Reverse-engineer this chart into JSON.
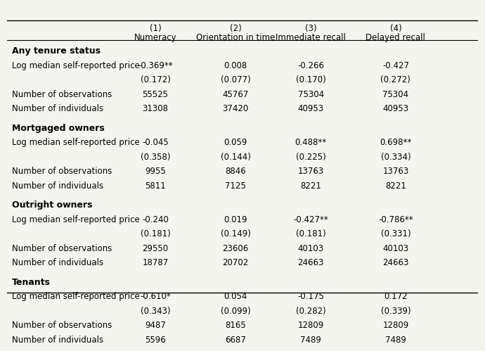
{
  "col_headers_line1": [
    "",
    "(1)",
    "(2)",
    "(3)",
    "(4)"
  ],
  "col_headers_line2": [
    "",
    "Numeracy",
    "Orientation in time",
    "Immediate recall",
    "Delayed recall"
  ],
  "sections": [
    {
      "title": "Any tenure status",
      "rows": [
        {
          "label": "Log median self-reported price",
          "values": [
            "-0.369**",
            "0.008",
            "-0.266",
            "-0.427"
          ],
          "is_coef": true
        },
        {
          "label": "",
          "values": [
            "(0.172)",
            "(0.077)",
            "(0.170)",
            "(0.272)"
          ],
          "is_coef": false
        },
        {
          "label": "Number of observations",
          "values": [
            "55525",
            "45767",
            "75304",
            "75304"
          ],
          "is_coef": false
        },
        {
          "label": "Number of individuals",
          "values": [
            "31308",
            "37420",
            "40953",
            "40953"
          ],
          "is_coef": false
        }
      ]
    },
    {
      "title": "Mortgaged owners",
      "rows": [
        {
          "label": "Log median self-reported price",
          "values": [
            "-0.045",
            "0.059",
            "0.488**",
            "0.698**"
          ],
          "is_coef": true
        },
        {
          "label": "",
          "values": [
            "(0.358)",
            "(0.144)",
            "(0.225)",
            "(0.334)"
          ],
          "is_coef": false
        },
        {
          "label": "Number of observations",
          "values": [
            "9955",
            "8846",
            "13763",
            "13763"
          ],
          "is_coef": false
        },
        {
          "label": "Number of individuals",
          "values": [
            "5811",
            "7125",
            "8221",
            "8221"
          ],
          "is_coef": false
        }
      ]
    },
    {
      "title": "Outright owners",
      "rows": [
        {
          "label": "Log median self-reported price",
          "values": [
            "-0.240",
            "0.019",
            "-0.427**",
            "-0.786**"
          ],
          "is_coef": true
        },
        {
          "label": "",
          "values": [
            "(0.181)",
            "(0.149)",
            "(0.181)",
            "(0.331)"
          ],
          "is_coef": false
        },
        {
          "label": "Number of observations",
          "values": [
            "29550",
            "23606",
            "40103",
            "40103"
          ],
          "is_coef": false
        },
        {
          "label": "Number of individuals",
          "values": [
            "18787",
            "20702",
            "24663",
            "24663"
          ],
          "is_coef": false
        }
      ]
    },
    {
      "title": "Tenants",
      "rows": [
        {
          "label": "Log median self-reported price",
          "values": [
            "-0.610*",
            "0.054",
            "-0.175",
            "0.172"
          ],
          "is_coef": true
        },
        {
          "label": "",
          "values": [
            "(0.343)",
            "(0.099)",
            "(0.282)",
            "(0.339)"
          ],
          "is_coef": false
        },
        {
          "label": "Number of observations",
          "values": [
            "9487",
            "8165",
            "12809",
            "12809"
          ],
          "is_coef": false
        },
        {
          "label": "Number of individuals",
          "values": [
            "5596",
            "6687",
            "7489",
            "7489"
          ],
          "is_coef": false
        }
      ]
    }
  ],
  "bg_color": "#f5f5f0",
  "text_color": "#000000",
  "font_size": 8.5,
  "title_font_size": 9.0,
  "header_font_size": 8.5
}
